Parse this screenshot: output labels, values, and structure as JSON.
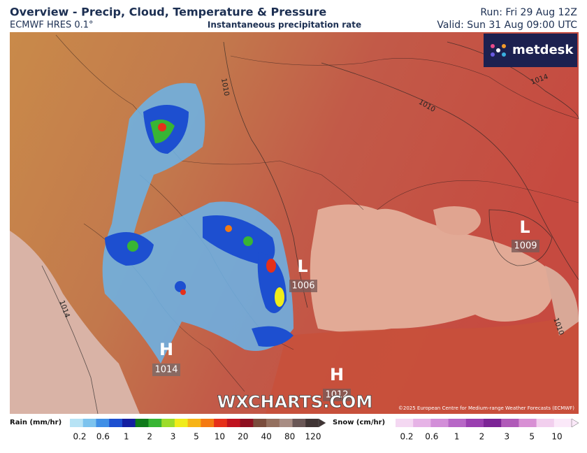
{
  "header": {
    "title": "Overview - Precip, Cloud, Temperature & Pressure",
    "model": "ECMWF HRES 0.1°",
    "subtitle": "Instantaneous precipitation rate",
    "run": "Run: Fri 29 Aug 12Z",
    "valid": "Valid: Sun 31 Aug 09:00 UTC"
  },
  "logo": "metdesk",
  "map": {
    "pressure_centers": [
      {
        "symbol": "L",
        "value": "1009"
      },
      {
        "symbol": "L",
        "value": "1006"
      },
      {
        "symbol": "H",
        "value": "1014"
      },
      {
        "symbol": "H",
        "value": "1012"
      }
    ],
    "isobar_labels": [
      "1010",
      "1014",
      "1010",
      "1014",
      "1010"
    ],
    "watermark": "WXCHARTS.COM",
    "copyright": "©2025 European Centre for Medium-range Weather Forecasts (ECMWF)"
  },
  "legend": {
    "rain": {
      "label": "Rain (mm/hr)",
      "ticks": [
        0.2,
        0.6,
        1,
        2,
        3,
        5,
        10,
        20,
        40,
        80,
        120
      ],
      "colors": [
        "#b7e3f5",
        "#7cc3ee",
        "#3f8fe6",
        "#1d4fd0",
        "#141ea0",
        "#0f7a1a",
        "#38b534",
        "#9ddc2a",
        "#f0ec1a",
        "#f7b415",
        "#f47a12",
        "#e6301a",
        "#c0121e",
        "#8e1020",
        "#7a4c3c",
        "#94705f",
        "#a88d84",
        "#6a5756",
        "#3f3434"
      ]
    },
    "snow": {
      "label": "Snow (cm/hr)",
      "ticks": [
        0.2,
        0.6,
        1,
        2,
        3,
        5,
        10
      ],
      "colors": [
        "#f4d8f2",
        "#e6b3e6",
        "#d28ed8",
        "#b767c6",
        "#9a3fb0",
        "#7c2596",
        "#b05ab8",
        "#d890d4",
        "#f2cfee",
        "#fbe9f9"
      ]
    }
  }
}
